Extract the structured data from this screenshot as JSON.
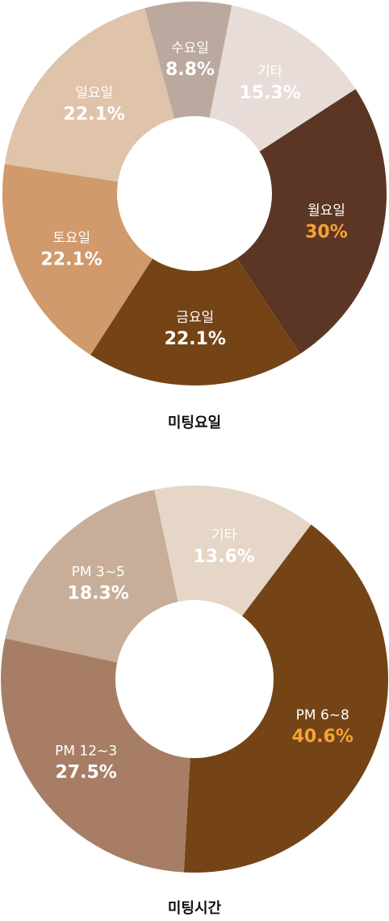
{
  "chart_data": [
    {
      "type": "donut",
      "title": "미팅요일",
      "categories": [
        "월요일",
        "금요일",
        "토요일",
        "일요일",
        "수요일",
        "기타"
      ],
      "values": [
        30,
        22.1,
        22.1,
        22.1,
        8.8,
        15.3
      ],
      "value_labels": [
        "30%",
        "22.1%",
        "22.1%",
        "22.1%",
        "8.8%",
        "15.3%"
      ],
      "colors": [
        "#5c3624",
        "#744417",
        "#d09a6c",
        "#e0c3ab",
        "#bba99f",
        "#e8dcd8"
      ]
    },
    {
      "type": "donut",
      "title": "미팅시간",
      "categories": [
        "PM 6~8",
        "PM 12~3",
        "PM 3~5",
        "기타"
      ],
      "values": [
        40.6,
        27.5,
        18.3,
        13.6
      ],
      "value_labels": [
        "40.6%",
        "27.5%",
        "18.3%",
        "13.6%"
      ],
      "colors": [
        "#744417",
        "#a77e65",
        "#c8ae98",
        "#e5d6c8"
      ]
    }
  ]
}
